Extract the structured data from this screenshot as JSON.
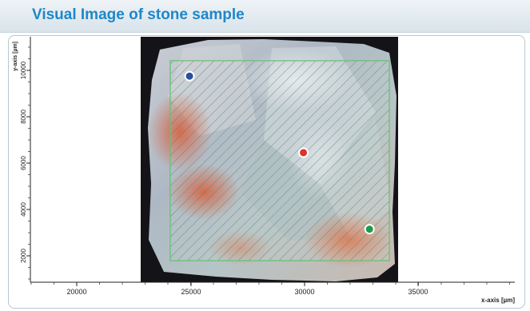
{
  "panel": {
    "title": "Visual Image of stone sample"
  },
  "plot": {
    "x_axis_label": "x-axis [µm]",
    "y_axis_label": "y-axis [µm]",
    "x_ticks": [
      "20000",
      "25000",
      "30000",
      "35000"
    ],
    "y_ticks": [
      "2000",
      "4000",
      "6000",
      "8000",
      "10000"
    ],
    "markers": [
      {
        "name": "blue",
        "color": "#2a4ea0",
        "x": 24950,
        "y": 9750
      },
      {
        "name": "red",
        "color": "#e0312b",
        "x": 29950,
        "y": 6450
      },
      {
        "name": "green",
        "color": "#1f9a4a",
        "x": 32850,
        "y": 3150
      }
    ],
    "colors": {
      "accent": "#1f87c8",
      "selection": "#5fbf6a"
    }
  }
}
